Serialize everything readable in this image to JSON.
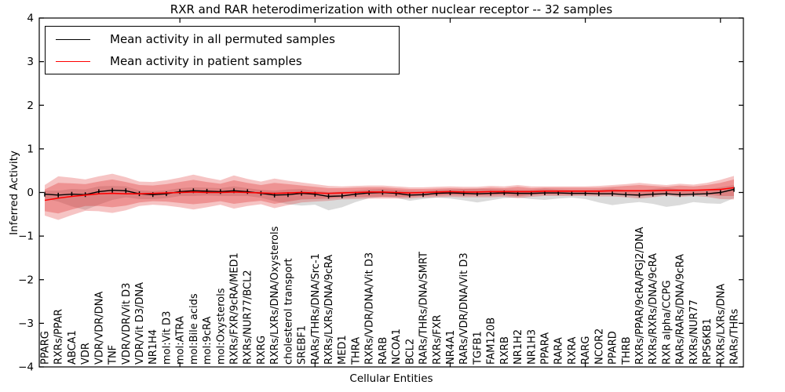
{
  "chart_data": {
    "type": "line",
    "title": "RXR and RAR heterodimerization with other nuclear receptor -- 32 samples",
    "xlabel": "Cellular Entities",
    "ylabel": "Inferred Activity",
    "ylim": [
      -4,
      4
    ],
    "ytick_labels": [
      "4",
      "3",
      "2",
      "1",
      "0",
      "−1",
      "−2",
      "−3",
      "−4"
    ],
    "ytick_values": [
      4,
      3,
      2,
      1,
      0,
      -1,
      -2,
      -3,
      -4
    ],
    "xtick_index_positions": [
      10,
      20,
      30,
      40,
      50
    ],
    "grid": false,
    "legend_position": "upper left",
    "colors": {
      "permuted_line": "#000000",
      "patient_line": "#ff0000",
      "patient_band": "#dd2c2c",
      "permuted_band": "#999999",
      "spine": "#000000"
    },
    "categories": [
      "PPARG",
      "RXRs/PPAR",
      "ABCA1",
      "VDR",
      "VDR/VDR/DNA",
      "TNF",
      "VDR/VDR/Vit D3",
      "VDR/Vit D3/DNA",
      "NR1H4",
      "mol:Vit D3",
      "mol:ATRA",
      "mol:Bile acids",
      "mol:9cRA",
      "mol:Oxysterols",
      "RXRs/FXR/9cRA/MED1",
      "RXRs/NUR77/BCL2",
      "RXRG",
      "RXRs/LXRs/DNA/Oxysterols",
      "cholesterol transport",
      "SREBF1",
      "RARs/THRs/DNA/Src-1",
      "RXRs/LXRs/DNA/9cRA",
      "MED1",
      "THRA",
      "RXRs/VDR/DNA/Vit D3",
      "RARB",
      "NCOA1",
      "BCL2",
      "RARs/THRs/DNA/SMRT",
      "RXRs/FXR",
      "NR4A1",
      "RARs/VDR/DNA/Vit D3",
      "TGFB1",
      "FAM120B",
      "RXRB",
      "NR1H2",
      "NR1H3",
      "PPARA",
      "RARA",
      "RXRA",
      "RARG",
      "NCOR2",
      "PPARD",
      "THRB",
      "RXRs/PPAR/9cRA/PGJ2/DNA",
      "RXRs/RXRs/DNA/9cRA",
      "RXR alpha/CCPG",
      "RARs/RARs/DNA/9cRA",
      "RXRs/NUR77",
      "RPS6KB1",
      "RXRs/LXRs/DNA",
      "RARs/THRs"
    ],
    "series": [
      {
        "name": "Mean activity in all permuted samples",
        "color": "#000000",
        "marker": "vertical-tick",
        "values": [
          -0.04,
          -0.06,
          -0.04,
          -0.05,
          0.02,
          0.05,
          0.04,
          -0.03,
          -0.05,
          -0.03,
          0.02,
          0.04,
          0.03,
          0.02,
          0.04,
          0.02,
          -0.02,
          -0.06,
          -0.05,
          -0.02,
          -0.04,
          -0.09,
          -0.08,
          -0.04,
          -0.01,
          0.0,
          -0.02,
          -0.06,
          -0.05,
          -0.02,
          -0.01,
          -0.02,
          -0.03,
          -0.02,
          -0.01,
          -0.02,
          -0.02,
          -0.01,
          -0.01,
          -0.02,
          -0.02,
          -0.03,
          -0.03,
          -0.05,
          -0.06,
          -0.04,
          -0.03,
          -0.05,
          -0.04,
          -0.03,
          0.0,
          0.07
        ]
      },
      {
        "name": "Mean activity in patient samples",
        "color": "#ff0000",
        "marker": "none",
        "values": [
          -0.18,
          -0.13,
          -0.09,
          -0.06,
          -0.03,
          -0.02,
          -0.03,
          -0.03,
          -0.02,
          -0.01,
          0.0,
          0.01,
          0.0,
          0.0,
          0.01,
          0.0,
          -0.01,
          -0.02,
          -0.01,
          0.0,
          -0.01,
          -0.02,
          -0.01,
          0.0,
          0.01,
          0.01,
          0.0,
          -0.01,
          0.0,
          0.01,
          0.02,
          0.01,
          0.01,
          0.02,
          0.02,
          0.02,
          0.02,
          0.03,
          0.03,
          0.03,
          0.03,
          0.03,
          0.04,
          0.04,
          0.04,
          0.04,
          0.05,
          0.05,
          0.05,
          0.06,
          0.07,
          0.11
        ]
      }
    ],
    "bands": [
      {
        "name": "permuted-samples-range-band",
        "color": "#999999",
        "opacity": 0.35,
        "upper": [
          0.04,
          0.04,
          0.08,
          0.07,
          0.14,
          0.15,
          0.14,
          0.05,
          0.03,
          0.05,
          0.1,
          0.12,
          0.11,
          0.1,
          0.14,
          0.1,
          0.06,
          0.04,
          0.07,
          0.08,
          0.04,
          0.01,
          0.02,
          0.04,
          0.07,
          0.08,
          0.06,
          0.04,
          0.03,
          0.06,
          0.07,
          0.08,
          0.09,
          0.08,
          0.07,
          0.06,
          0.06,
          0.09,
          0.07,
          0.06,
          0.06,
          0.07,
          0.09,
          0.05,
          0.04,
          0.08,
          0.11,
          0.07,
          0.06,
          0.07,
          0.12,
          0.17
        ],
        "lower": [
          -0.14,
          -0.21,
          -0.32,
          -0.4,
          -0.28,
          -0.17,
          -0.11,
          -0.15,
          -0.15,
          -0.13,
          -0.08,
          -0.08,
          -0.07,
          -0.08,
          -0.08,
          -0.08,
          -0.12,
          -0.2,
          -0.27,
          -0.3,
          -0.28,
          -0.41,
          -0.34,
          -0.22,
          -0.13,
          -0.1,
          -0.12,
          -0.19,
          -0.15,
          -0.12,
          -0.14,
          -0.18,
          -0.23,
          -0.18,
          -0.13,
          -0.12,
          -0.15,
          -0.17,
          -0.14,
          -0.12,
          -0.15,
          -0.23,
          -0.29,
          -0.25,
          -0.22,
          -0.26,
          -0.33,
          -0.29,
          -0.22,
          -0.25,
          -0.26,
          -0.13
        ]
      },
      {
        "name": "patient-samples-outer-band",
        "color": "#dd2c2c",
        "opacity": 0.28,
        "upper": [
          0.17,
          0.37,
          0.34,
          0.3,
          0.37,
          0.43,
          0.35,
          0.25,
          0.24,
          0.28,
          0.34,
          0.41,
          0.34,
          0.28,
          0.39,
          0.31,
          0.25,
          0.32,
          0.27,
          0.23,
          0.19,
          0.15,
          0.14,
          0.15,
          0.16,
          0.16,
          0.14,
          0.12,
          0.12,
          0.13,
          0.14,
          0.13,
          0.13,
          0.15,
          0.14,
          0.17,
          0.14,
          0.14,
          0.14,
          0.14,
          0.14,
          0.15,
          0.17,
          0.19,
          0.22,
          0.19,
          0.17,
          0.2,
          0.18,
          0.22,
          0.29,
          0.38
        ],
        "lower": [
          -0.53,
          -0.63,
          -0.52,
          -0.42,
          -0.43,
          -0.47,
          -0.41,
          -0.31,
          -0.28,
          -0.3,
          -0.34,
          -0.39,
          -0.34,
          -0.28,
          -0.37,
          -0.31,
          -0.27,
          -0.36,
          -0.29,
          -0.23,
          -0.21,
          -0.19,
          -0.16,
          -0.15,
          -0.14,
          -0.14,
          -0.14,
          -0.14,
          -0.12,
          -0.11,
          -0.1,
          -0.11,
          -0.11,
          -0.11,
          -0.1,
          -0.13,
          -0.1,
          -0.08,
          -0.08,
          -0.08,
          -0.08,
          -0.09,
          -0.09,
          -0.11,
          -0.14,
          -0.11,
          -0.07,
          -0.1,
          -0.08,
          -0.1,
          -0.15,
          -0.16
        ]
      },
      {
        "name": "patient-samples-inner-band",
        "color": "#dd2c2c",
        "opacity": 0.32,
        "upper": [
          0.07,
          0.22,
          0.21,
          0.19,
          0.25,
          0.3,
          0.24,
          0.17,
          0.16,
          0.19,
          0.24,
          0.29,
          0.24,
          0.2,
          0.28,
          0.22,
          0.17,
          0.22,
          0.19,
          0.16,
          0.13,
          0.1,
          0.1,
          0.11,
          0.12,
          0.12,
          0.1,
          0.08,
          0.08,
          0.09,
          0.1,
          0.09,
          0.09,
          0.11,
          0.1,
          0.13,
          0.1,
          0.11,
          0.11,
          0.11,
          0.11,
          0.11,
          0.13,
          0.15,
          0.17,
          0.15,
          0.13,
          0.16,
          0.14,
          0.17,
          0.22,
          0.3
        ],
        "lower": [
          -0.43,
          -0.48,
          -0.39,
          -0.31,
          -0.31,
          -0.34,
          -0.3,
          -0.23,
          -0.2,
          -0.21,
          -0.24,
          -0.27,
          -0.24,
          -0.2,
          -0.26,
          -0.22,
          -0.19,
          -0.26,
          -0.21,
          -0.16,
          -0.15,
          -0.14,
          -0.12,
          -0.11,
          -0.1,
          -0.1,
          -0.1,
          -0.1,
          -0.08,
          -0.07,
          -0.06,
          -0.07,
          -0.07,
          -0.07,
          -0.06,
          -0.09,
          -0.06,
          -0.05,
          -0.05,
          -0.05,
          -0.05,
          -0.05,
          -0.05,
          -0.05,
          -0.09,
          -0.07,
          -0.03,
          -0.06,
          -0.04,
          -0.05,
          -0.08,
          -0.08
        ]
      }
    ]
  }
}
